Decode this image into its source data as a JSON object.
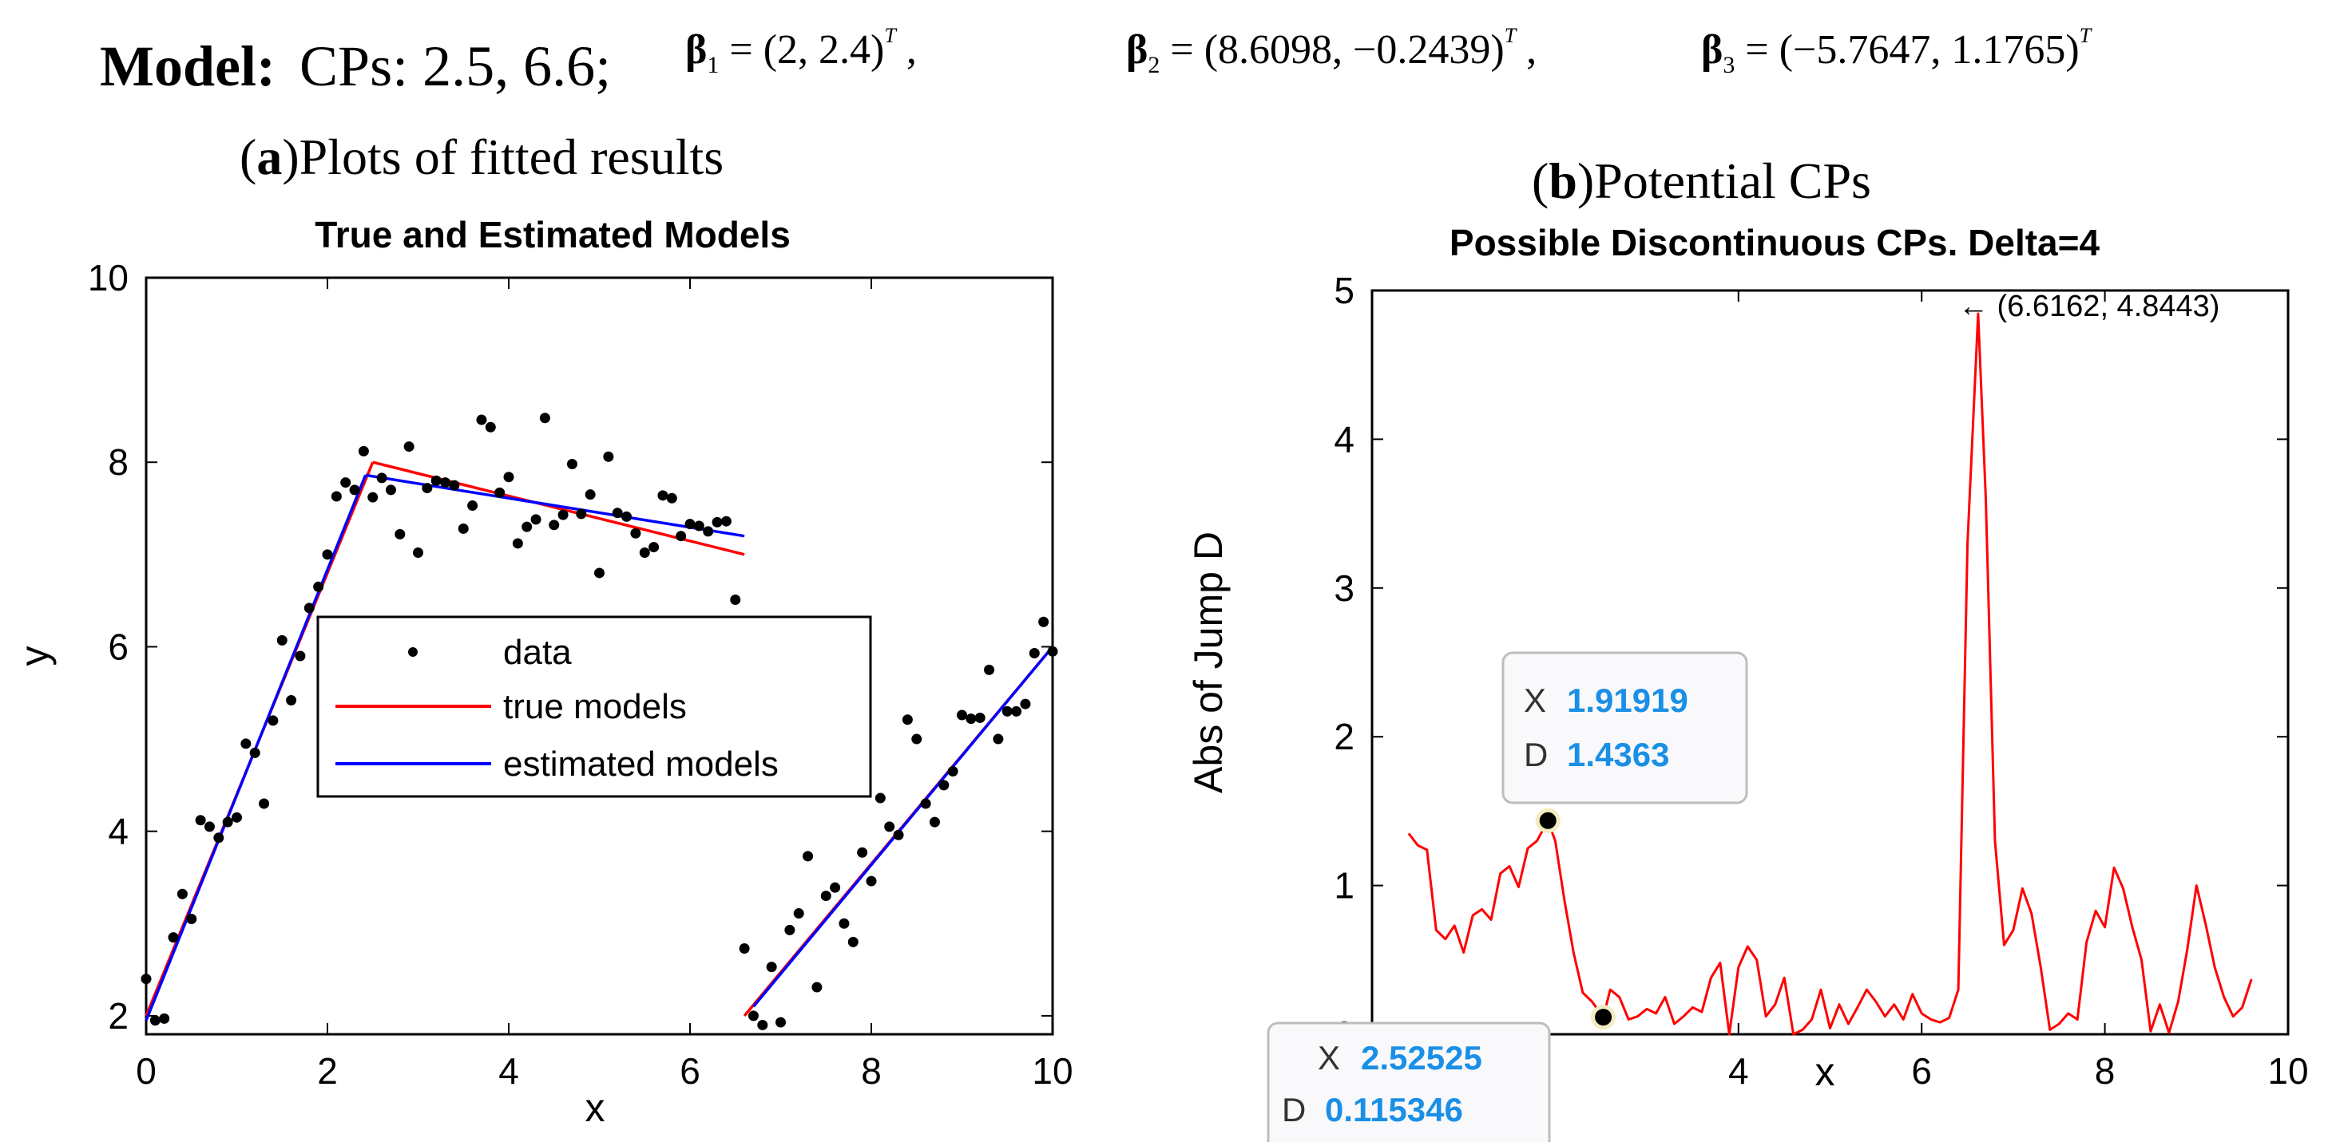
{
  "header": {
    "model_label": "Model:",
    "cps_text": "CPs: 2.5, 6.6;",
    "beta1": {
      "symbol": "β",
      "sub": "1",
      "value": " = (2,   2.4)",
      "sup": "T",
      "tail": " ,"
    },
    "beta2": {
      "symbol": "β",
      "sub": "2",
      "value": " = (8.6098,  −0.2439)",
      "sup": "T",
      "tail": " ,"
    },
    "beta3": {
      "symbol": "β",
      "sub": "3",
      "value": " = (−5.7647,  1.1765)",
      "sup": "T",
      "tail": ""
    }
  },
  "captions": {
    "a_letter": "a",
    "a_text": "Plots of fitted results",
    "b_letter": "b",
    "b_text": "Potential CPs",
    "open": "(",
    "close": ")"
  },
  "colors": {
    "true_model": "#ff0000",
    "estimated_model": "#0000ff",
    "data_point": "#000000",
    "jump_line": "#ff0000",
    "tooltip_value": "#1a8fe6"
  },
  "chart_data": [
    {
      "type": "scatter",
      "title": "True and Estimated Models",
      "xlabel": "x",
      "ylabel": "y",
      "xlim": [
        0,
        10
      ],
      "ylim": [
        1.8,
        10
      ],
      "xticks": [
        0,
        2,
        4,
        6,
        8,
        10
      ],
      "yticks": [
        2,
        4,
        6,
        8,
        10
      ],
      "legend": [
        "data",
        "true models",
        "estimated models"
      ],
      "legend_position": "center",
      "series": [
        {
          "name": "data",
          "kind": "points",
          "x": [
            0.0,
            0.1,
            0.2,
            0.3,
            0.4,
            0.5,
            0.6,
            0.7,
            0.8,
            0.9,
            1.0,
            1.1,
            1.2,
            1.3,
            1.4,
            1.5,
            1.6,
            1.7,
            1.8,
            1.9,
            2.0,
            2.1,
            2.2,
            2.3,
            2.4,
            2.5,
            2.6,
            2.7,
            2.8,
            2.9,
            3.0,
            3.1,
            3.2,
            3.3,
            3.4,
            3.5,
            3.6,
            3.7,
            3.8,
            3.9,
            4.0,
            4.1,
            4.2,
            4.3,
            4.4,
            4.5,
            4.6,
            4.7,
            4.8,
            4.9,
            5.0,
            5.1,
            5.2,
            5.3,
            5.4,
            5.5,
            5.6,
            5.7,
            5.8,
            5.9,
            6.0,
            6.1,
            6.2,
            6.3,
            6.4,
            6.5,
            6.6,
            6.7,
            6.8,
            6.9,
            7.0,
            7.1,
            7.2,
            7.3,
            7.4,
            7.5,
            7.6,
            7.7,
            7.8,
            7.9,
            8.0,
            8.1,
            8.2,
            8.3,
            8.4,
            8.5,
            8.6,
            8.7,
            8.8,
            8.9,
            9.0,
            9.1,
            9.2,
            9.3,
            9.4,
            9.5,
            9.6,
            9.7,
            9.8,
            9.9,
            10.0
          ],
          "y": [
            2.4,
            1.95,
            1.97,
            2.85,
            3.32,
            3.05,
            4.12,
            4.05,
            3.93,
            4.1,
            4.15,
            4.95,
            4.85,
            4.3,
            5.2,
            6.07,
            5.42,
            5.9,
            6.42,
            6.65,
            7.0,
            7.63,
            7.78,
            7.7,
            8.12,
            7.62,
            7.83,
            7.7,
            7.22,
            8.17,
            7.02,
            7.72,
            7.8,
            7.78,
            7.75,
            7.28,
            7.53,
            8.46,
            8.38,
            7.67,
            7.84,
            7.12,
            7.3,
            7.38,
            8.48,
            7.32,
            7.43,
            7.98,
            7.44,
            7.65,
            6.8,
            8.06,
            7.45,
            7.41,
            7.23,
            7.02,
            7.08,
            7.64,
            7.61,
            7.2,
            7.33,
            7.31,
            7.25,
            7.35,
            7.36,
            6.51,
            2.73,
            2.0,
            1.9,
            2.53,
            1.93,
            2.93,
            3.11,
            3.73,
            2.31,
            3.3,
            3.39,
            3.0,
            2.8,
            3.77,
            3.46,
            4.36,
            4.05,
            3.96,
            5.21,
            5.0,
            4.3,
            4.1,
            4.5,
            4.65,
            5.26,
            5.22,
            5.23,
            5.75,
            5.0,
            5.3,
            5.3,
            5.38,
            5.93,
            6.27,
            5.95
          ]
        },
        {
          "name": "true models",
          "kind": "segments",
          "segments": [
            [
              [
                0,
                2
              ],
              [
                2.5,
                8
              ]
            ],
            [
              [
                2.5,
                8
              ],
              [
                6.6,
                7.0
              ]
            ],
            [
              [
                6.6,
                2.0
              ],
              [
                10,
                6.0
              ]
            ]
          ]
        },
        {
          "name": "estimated models",
          "kind": "segments",
          "segments": [
            [
              [
                0,
                1.95
              ],
              [
                2.42,
                7.86
              ]
            ],
            [
              [
                2.42,
                7.86
              ],
              [
                6.6,
                7.2
              ]
            ],
            [
              [
                6.7,
                2.1
              ],
              [
                10,
                6.0
              ]
            ]
          ]
        }
      ]
    },
    {
      "type": "line",
      "title": "Possible Discontinuous CPs. Delta=4",
      "xlabel": "x",
      "ylabel": "Abs of Jump D",
      "xlim": [
        0,
        10
      ],
      "ylim": [
        0,
        5
      ],
      "xticks": [
        4,
        6,
        8,
        10
      ],
      "xtick_labels": [
        "4",
        "6",
        "8",
        "10"
      ],
      "yticks": [
        0,
        1,
        2,
        3,
        4,
        5
      ],
      "series": [
        {
          "name": "Abs of Jump D",
          "x": [
            0.4,
            0.5,
            0.6,
            0.7,
            0.8,
            0.9,
            1.0,
            1.1,
            1.2,
            1.3,
            1.4,
            1.5,
            1.6,
            1.7,
            1.8,
            1.92,
            2.0,
            2.1,
            2.2,
            2.3,
            2.4,
            2.525,
            2.6,
            2.7,
            2.8,
            2.9,
            3.0,
            3.1,
            3.2,
            3.3,
            3.4,
            3.5,
            3.6,
            3.7,
            3.8,
            3.9,
            4.0,
            4.1,
            4.2,
            4.3,
            4.4,
            4.5,
            4.6,
            4.7,
            4.8,
            4.9,
            5.0,
            5.1,
            5.2,
            5.3,
            5.4,
            5.5,
            5.6,
            5.7,
            5.8,
            5.9,
            6.0,
            6.1,
            6.2,
            6.3,
            6.4,
            6.5,
            6.6162,
            6.7,
            6.8,
            6.9,
            7.0,
            7.1,
            7.2,
            7.3,
            7.4,
            7.5,
            7.6,
            7.7,
            7.8,
            7.9,
            8.0,
            8.1,
            8.2,
            8.3,
            8.4,
            8.5,
            8.6,
            8.7,
            8.8,
            8.9,
            9.0,
            9.1,
            9.2,
            9.3,
            9.4,
            9.5,
            9.6
          ],
          "values": [
            1.35,
            1.27,
            1.24,
            0.7,
            0.64,
            0.73,
            0.55,
            0.8,
            0.84,
            0.77,
            1.08,
            1.13,
            0.99,
            1.25,
            1.3,
            1.4363,
            1.3,
            0.9,
            0.55,
            0.28,
            0.22,
            0.115,
            0.3,
            0.25,
            0.1,
            0.12,
            0.17,
            0.14,
            0.25,
            0.07,
            0.12,
            0.18,
            0.15,
            0.38,
            0.48,
            0.0,
            0.45,
            0.59,
            0.5,
            0.12,
            0.2,
            0.38,
            0.0,
            0.03,
            0.1,
            0.3,
            0.04,
            0.2,
            0.07,
            0.18,
            0.3,
            0.22,
            0.12,
            0.2,
            0.1,
            0.27,
            0.14,
            0.1,
            0.08,
            0.11,
            0.3,
            3.3,
            4.8443,
            3.6,
            1.3,
            0.6,
            0.7,
            0.98,
            0.81,
            0.45,
            0.03,
            0.07,
            0.14,
            0.1,
            0.62,
            0.83,
            0.72,
            1.12,
            0.98,
            0.72,
            0.5,
            0.02,
            0.2,
            0.01,
            0.22,
            0.57,
            1.0,
            0.74,
            0.45,
            0.25,
            0.12,
            0.18,
            0.37
          ]
        }
      ],
      "annotations": [
        {
          "text": "← (6.6162, 4.8443)",
          "x": 6.6162,
          "y": 4.8443
        }
      ],
      "datatips": [
        {
          "x_key": "X",
          "x_value": "1.91919",
          "y_key": "D",
          "y_value": "1.4363",
          "px": 1.92,
          "py": 1.4363
        },
        {
          "x_key": "X",
          "x_value": "2.52525",
          "y_key": "D",
          "y_value": "0.115346",
          "px": 2.525,
          "py": 0.115
        }
      ]
    }
  ]
}
